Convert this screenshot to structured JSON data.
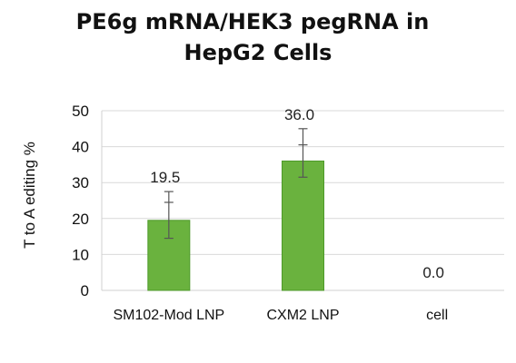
{
  "chart_data": {
    "type": "bar",
    "title_lines": [
      "PE6g mRNA/HEK3 pegRNA in",
      "HepG2 Cells"
    ],
    "xlabel": "",
    "ylabel": "T to A editing %",
    "ylim": [
      0,
      50
    ],
    "yticks": [
      "0",
      "10",
      "20",
      "30",
      "40",
      "50"
    ],
    "categories": [
      "SM102-Mod LNP",
      "CXM2 LNP",
      "cell"
    ],
    "values": [
      19.5,
      36.0,
      0.0
    ],
    "data_labels": [
      "19.5",
      "36.0",
      "0.0"
    ],
    "error_bars": [
      {
        "low": 14.5,
        "high": 27.5
      },
      {
        "low": 31.5,
        "high": 45.0
      },
      null
    ],
    "error_inner_ticks": [
      24.5,
      40.5,
      null
    ],
    "bar_color": "#6ab23e",
    "bar_edge_color": "#4e9a2a",
    "error_color": "#555555",
    "grid": "horizontal",
    "legend": "none"
  }
}
